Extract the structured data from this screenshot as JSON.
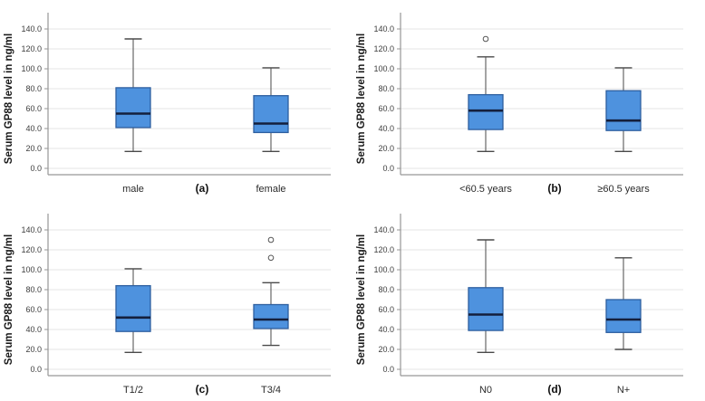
{
  "figure": {
    "background": "#ffffff",
    "description": "Four box plots of Serum GP88 level by patient subgroup"
  },
  "style": {
    "box_fill": "#4e92de",
    "box_border": "#2e5f9f",
    "median_color": "#141f3c",
    "whisker_color": "#4a4a4a",
    "outlier_color": "#555555",
    "grid_color": "#e4e4e4",
    "axis_color": "#969696",
    "tick_label_color": "#3d3d3d",
    "category_label_color": "#2b2b2b",
    "panel_letter_color": "#111111",
    "ylabel_color": "#1a1a1a"
  },
  "chart_data": [
    {
      "type": "box",
      "panel_letter": "(a)",
      "ylabel": "Serum GP88 level in ng/ml",
      "ylim": [
        0,
        150
      ],
      "yticks": [
        0,
        20,
        40,
        60,
        80,
        100,
        120,
        140
      ],
      "ytick_labels": [
        "0.0",
        "20.0",
        "40.0",
        "60.0",
        "80.0",
        "100.0",
        "120.0",
        "140.0"
      ],
      "grid": true,
      "legend": "none",
      "categories": [
        "male",
        "female"
      ],
      "series": [
        {
          "name": "male",
          "min": 17,
          "q1": 41,
          "median": 55,
          "q3": 81,
          "max": 130,
          "outliers": []
        },
        {
          "name": "female",
          "min": 17,
          "q1": 36,
          "median": 45,
          "q3": 73,
          "max": 101,
          "outliers": []
        }
      ]
    },
    {
      "type": "box",
      "panel_letter": "(b)",
      "ylabel": "Serum GP88 level in ng/ml",
      "ylim": [
        0,
        150
      ],
      "yticks": [
        0,
        20,
        40,
        60,
        80,
        100,
        120,
        140
      ],
      "ytick_labels": [
        "0.0",
        "20.0",
        "40.0",
        "60.0",
        "80.0",
        "100.0",
        "120.0",
        "140.0"
      ],
      "grid": true,
      "legend": "none",
      "categories": [
        "<60.5 years",
        "≥60.5 years"
      ],
      "series": [
        {
          "name": "<60.5 years",
          "min": 17,
          "q1": 39,
          "median": 58,
          "q3": 74,
          "max": 112,
          "outliers": [
            130
          ]
        },
        {
          "name": "≥60.5 years",
          "min": 17,
          "q1": 38,
          "median": 48,
          "q3": 78,
          "max": 101,
          "outliers": []
        }
      ]
    },
    {
      "type": "box",
      "panel_letter": "(c)",
      "ylabel": "Serum GP88 level in ng/ml",
      "ylim": [
        0,
        150
      ],
      "yticks": [
        0,
        20,
        40,
        60,
        80,
        100,
        120,
        140
      ],
      "ytick_labels": [
        "0.0",
        "20.0",
        "40.0",
        "60.0",
        "80.0",
        "100.0",
        "120.0",
        "140.0"
      ],
      "grid": true,
      "legend": "none",
      "categories": [
        "T1/2",
        "T3/4"
      ],
      "series": [
        {
          "name": "T1/2",
          "min": 17,
          "q1": 38,
          "median": 52,
          "q3": 84,
          "max": 101,
          "outliers": []
        },
        {
          "name": "T3/4",
          "min": 24,
          "q1": 41,
          "median": 50,
          "q3": 65,
          "max": 87,
          "outliers": [
            112,
            130
          ]
        }
      ]
    },
    {
      "type": "box",
      "panel_letter": "(d)",
      "ylabel": "Serum GP88 level in ng/ml",
      "ylim": [
        0,
        150
      ],
      "yticks": [
        0,
        20,
        40,
        60,
        80,
        100,
        120,
        140
      ],
      "ytick_labels": [
        "0.0",
        "20.0",
        "40.0",
        "60.0",
        "80.0",
        "100.0",
        "120.0",
        "140.0"
      ],
      "grid": true,
      "legend": "none",
      "categories": [
        "N0",
        "N+"
      ],
      "series": [
        {
          "name": "N0",
          "min": 17,
          "q1": 39,
          "median": 55,
          "q3": 82,
          "max": 130,
          "outliers": []
        },
        {
          "name": "N+",
          "min": 20,
          "q1": 37,
          "median": 50,
          "q3": 70,
          "max": 112,
          "outliers": []
        }
      ]
    }
  ]
}
